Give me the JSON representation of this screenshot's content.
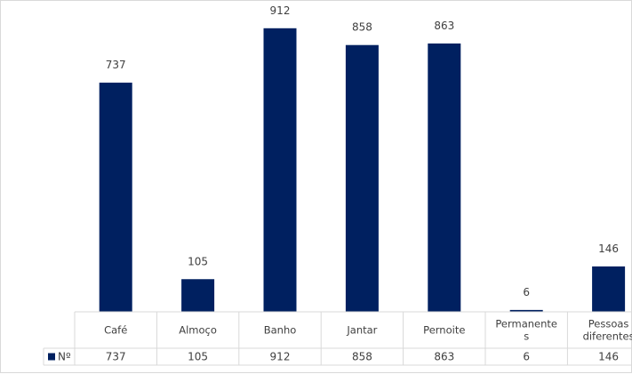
{
  "chart_data": {
    "type": "bar",
    "title": "",
    "xlabel": "",
    "ylabel": "",
    "categories": [
      [
        "Café"
      ],
      [
        "Almoço"
      ],
      [
        "Banho"
      ],
      [
        "Jantar"
      ],
      [
        "Pernoite"
      ],
      [
        "Permanente",
        "s"
      ],
      [
        "Pessoas",
        "diferentes"
      ]
    ],
    "series": [
      {
        "name": "Nº",
        "color": "#002060",
        "values": [
          737,
          105,
          912,
          858,
          863,
          6,
          146
        ]
      }
    ],
    "ylim": [
      0,
      960
    ],
    "data_labels": true,
    "data_table": true,
    "legend": "data-table-left",
    "grid": false
  }
}
